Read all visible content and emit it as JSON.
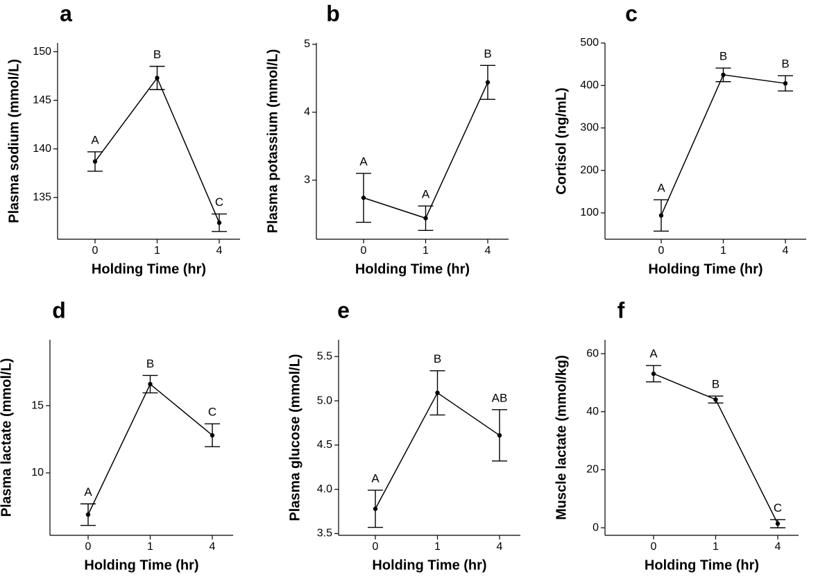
{
  "chart_data": [
    {
      "type": "line",
      "title": "a",
      "xlabel": "Holding Time (hr)",
      "ylabel": "Plasma sodium (mmol/L)",
      "categories": [
        "0",
        "1",
        "4"
      ],
      "values": [
        138.7,
        147.3,
        132.4
      ],
      "errors": [
        1.0,
        1.2,
        0.9
      ],
      "annotations": [
        "A",
        "B",
        "C"
      ],
      "ylim": [
        130.7,
        150.9
      ],
      "yticks": [
        135,
        140,
        145,
        150
      ],
      "color": "#000000"
    },
    {
      "type": "line",
      "title": "b",
      "xlabel": "Holding Time (hr)",
      "ylabel": "Plasma potassium (mmol/L)",
      "categories": [
        "0",
        "1",
        "4"
      ],
      "values": [
        2.74,
        2.44,
        4.44
      ],
      "errors": [
        0.36,
        0.18,
        0.25
      ],
      "annotations": [
        "A",
        "A",
        "B"
      ],
      "ylim": [
        2.13,
        5.02
      ],
      "yticks": [
        3,
        4,
        5
      ],
      "color": "#000000"
    },
    {
      "type": "line",
      "title": "c",
      "xlabel": "Holding Time (hr)",
      "ylabel": "Cortisol (ng/mL)",
      "categories": [
        "0",
        "1",
        "4"
      ],
      "values": [
        94,
        425,
        405
      ],
      "errors": [
        37,
        16,
        18
      ],
      "annotations": [
        "A",
        "B",
        "B"
      ],
      "ylim": [
        38,
        500
      ],
      "yticks": [
        100,
        200,
        300,
        400,
        500
      ],
      "color": "#000000"
    },
    {
      "type": "line",
      "title": "d",
      "xlabel": "Holding Time (hr)",
      "ylabel": "Plasma lactate (mmol/L)",
      "categories": [
        "0",
        "1",
        "4"
      ],
      "values": [
        6.9,
        16.6,
        12.8
      ],
      "errors": [
        0.8,
        0.65,
        0.85
      ],
      "annotations": [
        "A",
        "B",
        "C"
      ],
      "ylim": [
        5.36,
        19.9
      ],
      "yticks": [
        10,
        15
      ],
      "color": "#000000"
    },
    {
      "type": "line",
      "title": "e",
      "xlabel": "Holding Time (hr)",
      "ylabel": "Plasma glucose (mmol/L)",
      "categories": [
        "0",
        "1",
        "4"
      ],
      "values": [
        3.78,
        5.09,
        4.61
      ],
      "errors": [
        0.21,
        0.25,
        0.29
      ],
      "annotations": [
        "A",
        "B",
        "AB"
      ],
      "ylim": [
        3.48,
        5.69
      ],
      "yticks": [
        3.5,
        {
          "value": 4,
          "label": "4.0"
        },
        4.5,
        {
          "value": 5,
          "label": "5.0"
        },
        5.5
      ],
      "color": "#000000"
    },
    {
      "type": "line",
      "title": "f",
      "xlabel": "Holding Time (hr)",
      "ylabel": "Muscle lactate (mmol/kg)",
      "categories": [
        "0",
        "1",
        "4"
      ],
      "values": [
        53.1,
        44.2,
        1.4
      ],
      "errors": [
        2.8,
        1.2,
        1.4
      ],
      "annotations": [
        "A",
        "B",
        "C"
      ],
      "ylim": [
        -2.6,
        64.8
      ],
      "yticks": [
        0,
        20,
        40,
        60
      ],
      "color": "#000000"
    }
  ]
}
